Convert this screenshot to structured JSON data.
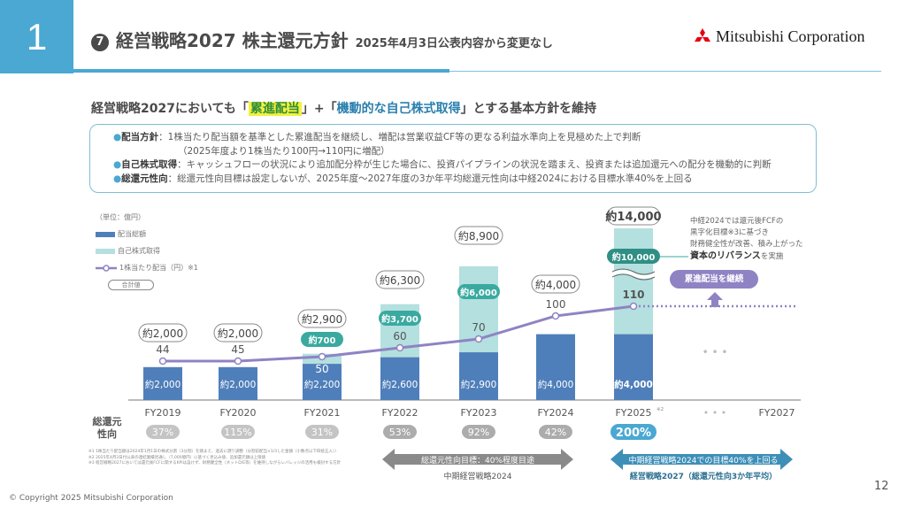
{
  "header": {
    "section_number": "1",
    "title_index": "7",
    "title": "経営戦略2027 株主還元方針",
    "subtitle": "2025年4月3日公表内容から変更なし",
    "company_logo_text": "Mitsubishi Corporation"
  },
  "headline": {
    "prefix": "経営戦略2027においても「",
    "highlight1": "累進配当",
    "middle": "」+「",
    "highlight2": "機動的な自己株式取得",
    "suffix": "」とする基本方針を維持"
  },
  "policy": [
    {
      "term": "配当方針",
      "text": "：1株当たり配当額を基準とした累進配当を継続し、増配は営業収益CF等の更なる利益水準向上を見極めた上で判断",
      "sub": "（2025年度より1株当たり100円→110円に増配）"
    },
    {
      "term": "自己株式取得",
      "text": "：キャッシュフローの状況により追加配分枠が生じた場合に、投資パイプラインの状況を踏まえ、投資または追加還元への配分を機動的に判断"
    },
    {
      "term": "総還元性向",
      "text": "：総還元性向目標は設定しないが、2025年度～2027年度の3か年平均総還元性向は中経2024における目標水準40%を上回る"
    }
  ],
  "legend": {
    "unit": "（単位：億円）",
    "dividend": "配当総額",
    "buyback": "自己株式取得",
    "dps": "1株当たり配当（円）※1",
    "total": "合計値"
  },
  "colors": {
    "accent": "#4aa8d3",
    "dividend_bar": "#4f7fba",
    "buyback_bar": "#b4e0df",
    "buyback_pill": "#3aaaa0",
    "dps_line": "#8f83c4",
    "payout_pill": "#c4c4c4",
    "payout_pill_highlight": "#4aa8d3"
  },
  "chart_data": {
    "type": "bar",
    "title": "",
    "xlabel": "",
    "ylabel": "億円",
    "categories": [
      "FY2019",
      "FY2020",
      "FY2021",
      "FY2022",
      "FY2023",
      "FY2024",
      "FY2025",
      "…",
      "FY2027"
    ],
    "category_notes": {
      "FY2025": "※2"
    },
    "series": [
      {
        "name": "配当総額",
        "values": [
          2000,
          2000,
          2200,
          2600,
          2900,
          4000,
          4000,
          null,
          null
        ],
        "labels": [
          "約2,000",
          "約2,000",
          "約2,200",
          "約2,600",
          "約2,900",
          "約4,000",
          "約4,000",
          "",
          ""
        ]
      },
      {
        "name": "自己株式取得",
        "values": [
          0,
          0,
          700,
          3700,
          6000,
          0,
          10000,
          null,
          null
        ],
        "labels": [
          "",
          "",
          "約700",
          "約3,700",
          "約6,000",
          "",
          "約10,000",
          "",
          ""
        ]
      },
      {
        "name": "1株当たり配当（円）",
        "type": "line",
        "values": [
          44,
          45,
          50,
          60,
          70,
          100,
          110,
          null,
          null
        ]
      }
    ],
    "totals": [
      "約2,000",
      "約2,000",
      "約2,900",
      "約6,300",
      "約8,900",
      "約4,000",
      "約14,000",
      "",
      ""
    ],
    "payout_ratio": [
      "37%",
      "115%",
      "31%",
      "53%",
      "92%",
      "42%",
      "200%",
      "",
      ""
    ],
    "payout_label": "総還元性向",
    "axis_break": "FY2025",
    "ylim": [
      0,
      9000
    ]
  },
  "annotations": {
    "rebalance_note_lines": [
      "中経2024では還元後FCFの",
      "黒字化目標※3に基づき",
      "財務健全性が改善、積み上がった"
    ],
    "rebalance_bold": "資本のリバランス",
    "rebalance_suffix": "を実施",
    "continue_pill": "累進配当を継続",
    "ellipsis": "• • •",
    "arrow_mid2024": "総還元性向目標：40%程度目途",
    "arrow_mid2024_caption": "中期経営戦略2024",
    "arrow_2027": "中期経営戦略2024での目標40%を上回る",
    "arrow_2027_caption": "経営戦略2027（総還元性向3か年平均）"
  },
  "footnotes": [
    "※1 1株当たり配当額は2024年1月1日の株式分割（3分割）を踏まえ、過去に遡り調整（分割前配当×1/3した金額（小数点以下四捨五入））",
    "※2 2025年4月3日付公表の連結業績見通し（7,000億円）に基づく見込み値、追加還元額は上限値",
    "※3 経営戦略2027においては還元後FCFに関するKPIは設けず、財務健全性（ネットD/E等）を維持しながらレバレッジの活用も検討する方針"
  ],
  "footer": {
    "copyright": "© Copyright 2025 Mitsubishi Corporation",
    "page_number": "12"
  }
}
